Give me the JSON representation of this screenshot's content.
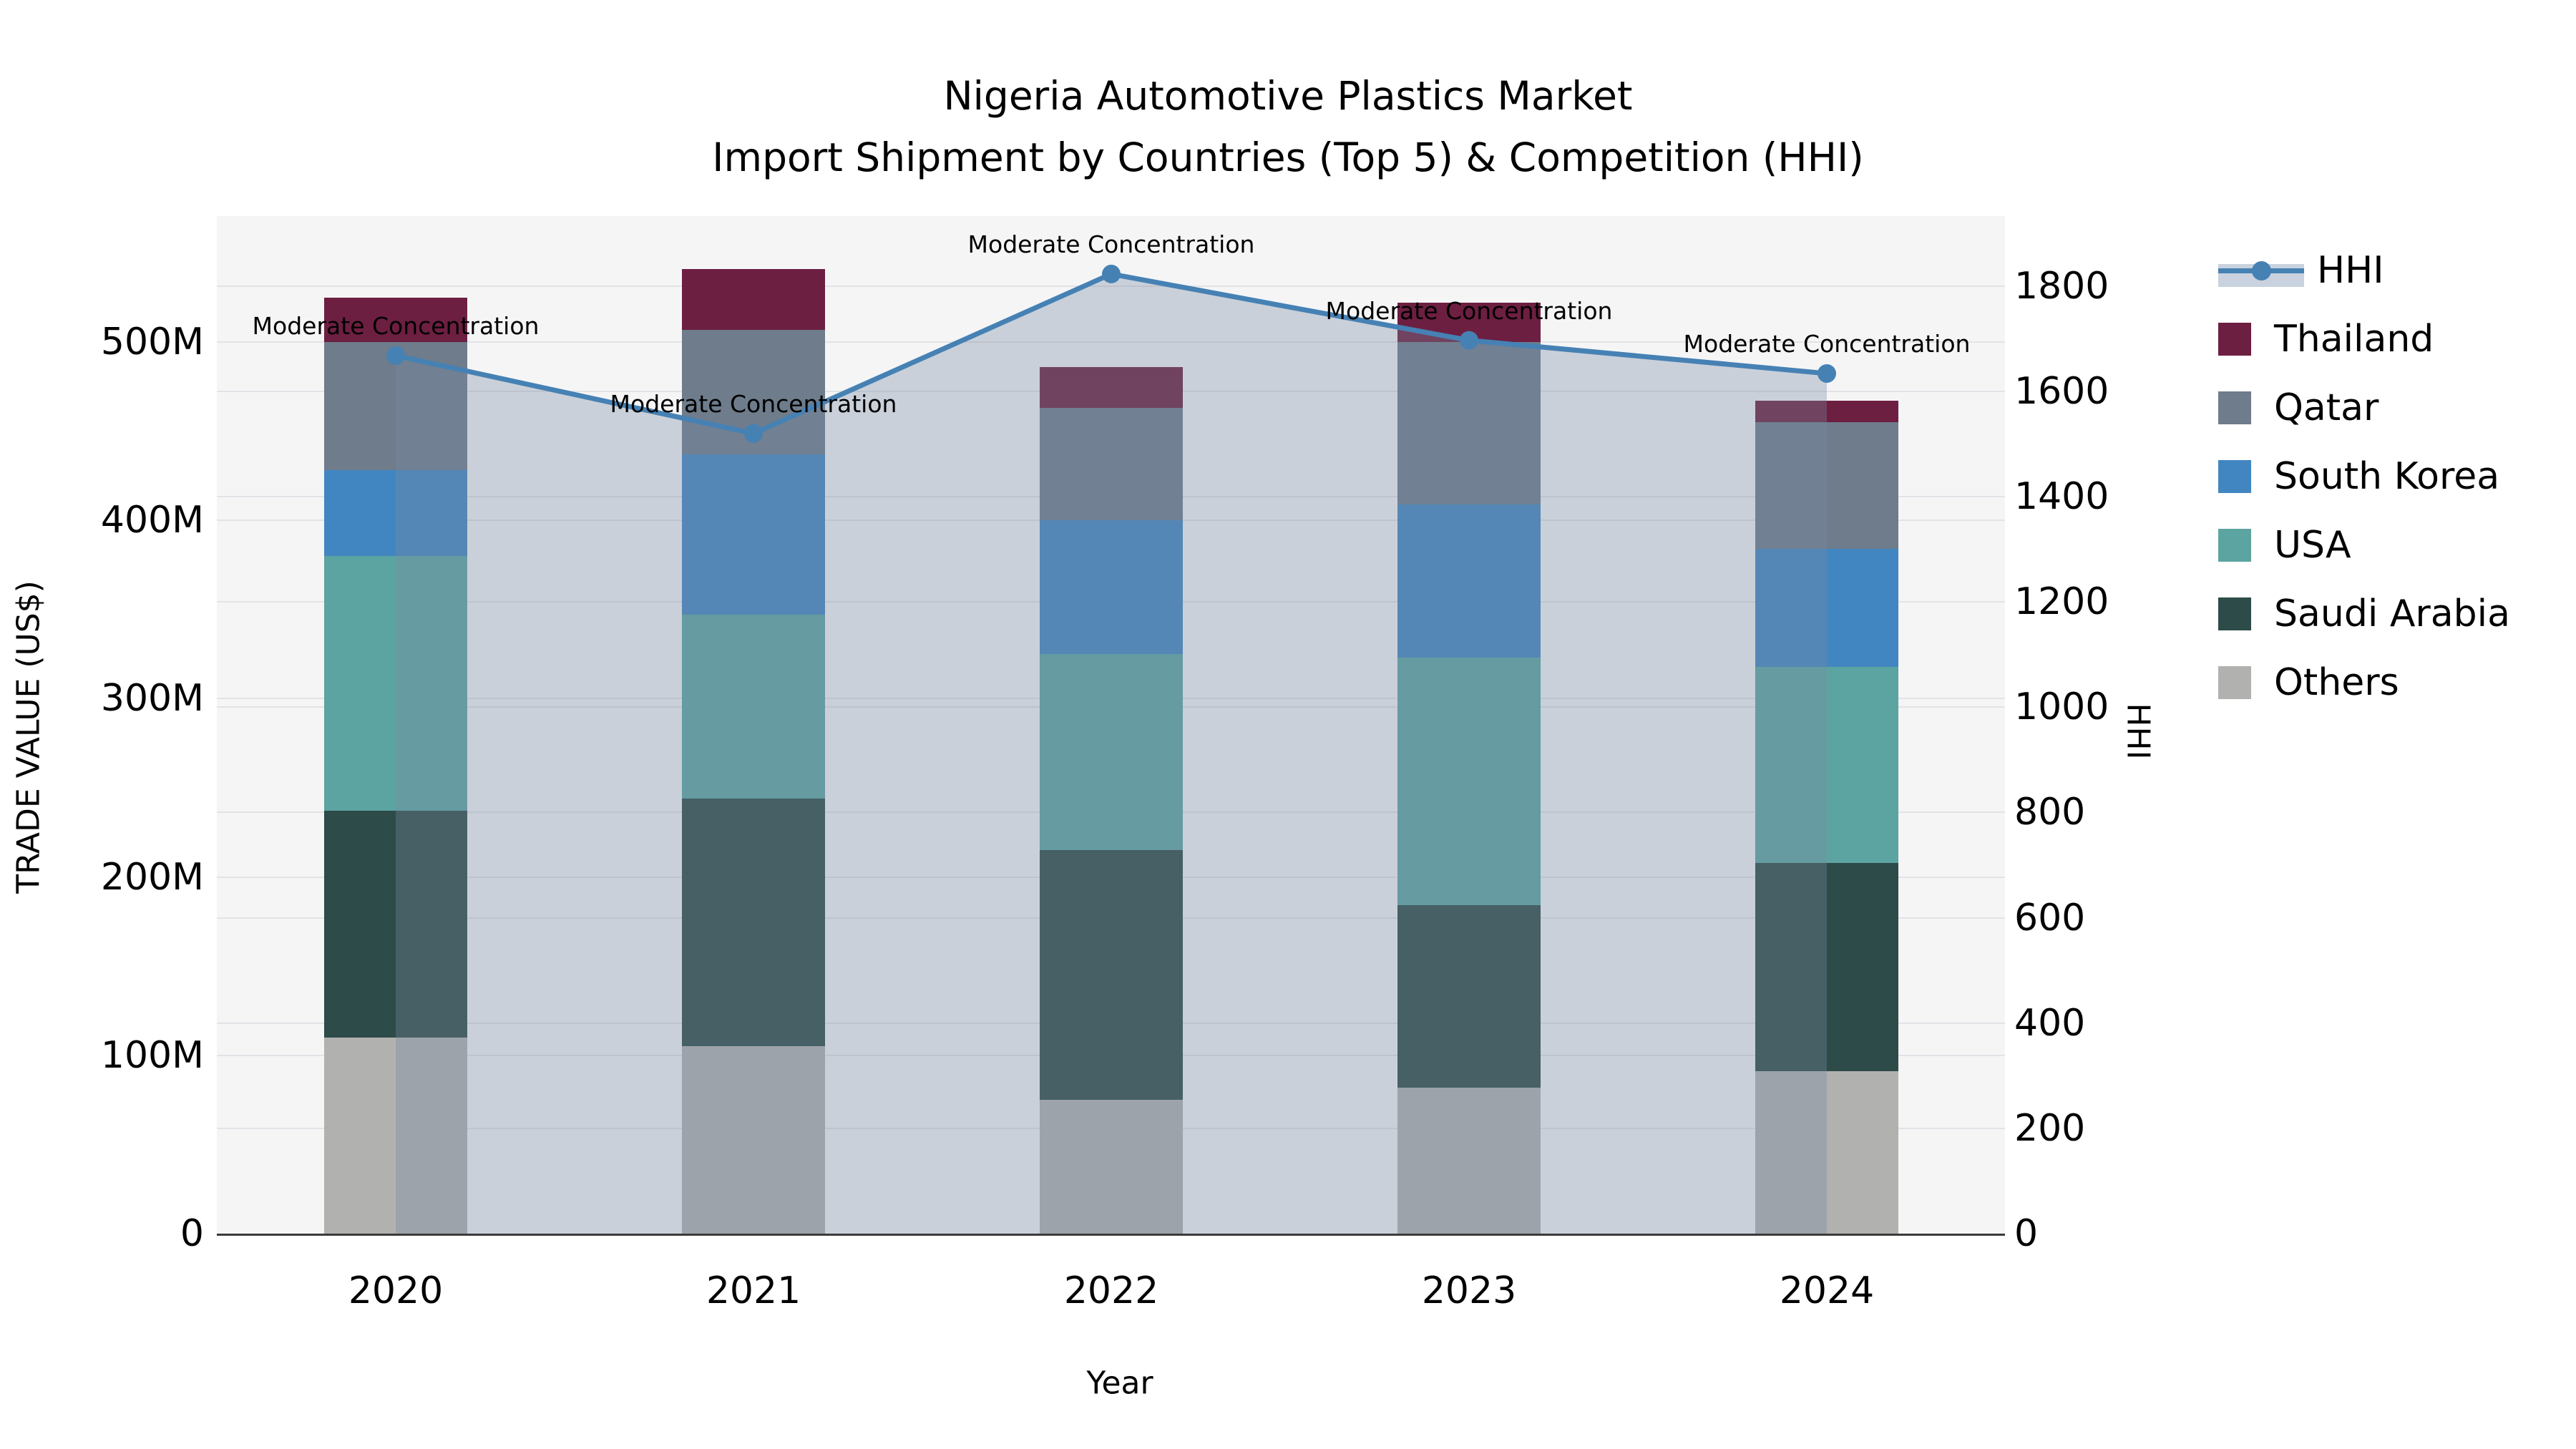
{
  "title": "Nigeria Automotive Plastics Market",
  "subtitle": "Import Shipment by Countries (Top 5) & Competition (HHI)",
  "axes": {
    "x": {
      "label": "Year",
      "tick_labels": [
        "2020",
        "2021",
        "2022",
        "2023",
        "2024"
      ]
    },
    "y_left": {
      "label": "TRADE VALUE (US$)",
      "tick_labels": [
        "0",
        "100M",
        "200M",
        "300M",
        "400M",
        "500M"
      ],
      "tick_values_musd": [
        0,
        100,
        200,
        300,
        400,
        500
      ],
      "range_musd": [
        0,
        570.6
      ]
    },
    "y_right": {
      "label": "HHI",
      "tick_labels": [
        "0",
        "200",
        "400",
        "600",
        "800",
        "1000",
        "1200",
        "1400",
        "1600",
        "1800"
      ],
      "tick_values": [
        0,
        200,
        400,
        600,
        800,
        1000,
        1200,
        1400,
        1600,
        1800
      ],
      "range": [
        0,
        1933
      ]
    }
  },
  "legend": {
    "entries": [
      {
        "id": "hhi",
        "label": "HHI",
        "type": "line"
      },
      {
        "id": "thailand",
        "label": "Thailand",
        "type": "patch"
      },
      {
        "id": "qatar",
        "label": "Qatar",
        "type": "patch"
      },
      {
        "id": "south-korea",
        "label": "South Korea",
        "type": "patch"
      },
      {
        "id": "usa",
        "label": "USA",
        "type": "patch"
      },
      {
        "id": "saudi-arabia",
        "label": "Saudi Arabia",
        "type": "patch"
      },
      {
        "id": "others",
        "label": "Others",
        "type": "patch"
      }
    ]
  },
  "annotations": [
    "Moderate Concentration",
    "Moderate Concentration",
    "Moderate Concentration",
    "Moderate Concentration",
    "Moderate Concentration"
  ],
  "colors": {
    "thailand": "#6d1f41",
    "qatar": "#6e7c8b",
    "south_korea": "#4286c1",
    "usa": "#5ca4a1",
    "saudi_arabia": "#2d4b48",
    "others": "#b1b1af",
    "hhi_line": "#4681b4",
    "hhi_fill": "rgba(121,137,161,0.34)",
    "hhi_legend_band": "#c9d2de",
    "plot_background": "#f5f5f6",
    "gridline": "#e2e3e6",
    "axis_spine": "#3b3b3b"
  },
  "chart_data": {
    "type": "bar",
    "subtype": "stacked-bars-with-line",
    "categories": [
      "2020",
      "2021",
      "2022",
      "2023",
      "2024"
    ],
    "bar_value_unit": "million US$",
    "series": [
      {
        "name": "Others",
        "color_key": "others",
        "values": [
          110,
          105,
          75,
          82,
          91
        ]
      },
      {
        "name": "Saudi Arabia",
        "color_key": "saudi_arabia",
        "values": [
          127,
          139,
          140,
          102,
          117
        ]
      },
      {
        "name": "USA",
        "color_key": "usa",
        "values": [
          143,
          103,
          110,
          139,
          110
        ]
      },
      {
        "name": "South Korea",
        "color_key": "south_korea",
        "values": [
          48,
          90,
          75,
          86,
          66
        ]
      },
      {
        "name": "Qatar",
        "color_key": "qatar",
        "values": [
          72,
          70,
          63,
          91,
          71
        ]
      },
      {
        "name": "Thailand",
        "color_key": "thailand",
        "values": [
          25,
          34,
          23,
          22,
          12
        ]
      }
    ],
    "stack_totals_musd": [
      525,
      541,
      486,
      522,
      467
    ],
    "line_series": {
      "name": "HHI",
      "axis": "right",
      "values": [
        1668,
        1520,
        1823,
        1697,
        1634
      ]
    },
    "title": "Nigeria Automotive Plastics Market",
    "xlabel": "Year",
    "ylabel_left": "TRADE VALUE (US$)",
    "ylabel_right": "HHI",
    "ylim_left_musd": [
      0,
      570.6
    ],
    "ylim_right": [
      0,
      1933
    ],
    "grid": true,
    "legend_position": "right-outside"
  }
}
